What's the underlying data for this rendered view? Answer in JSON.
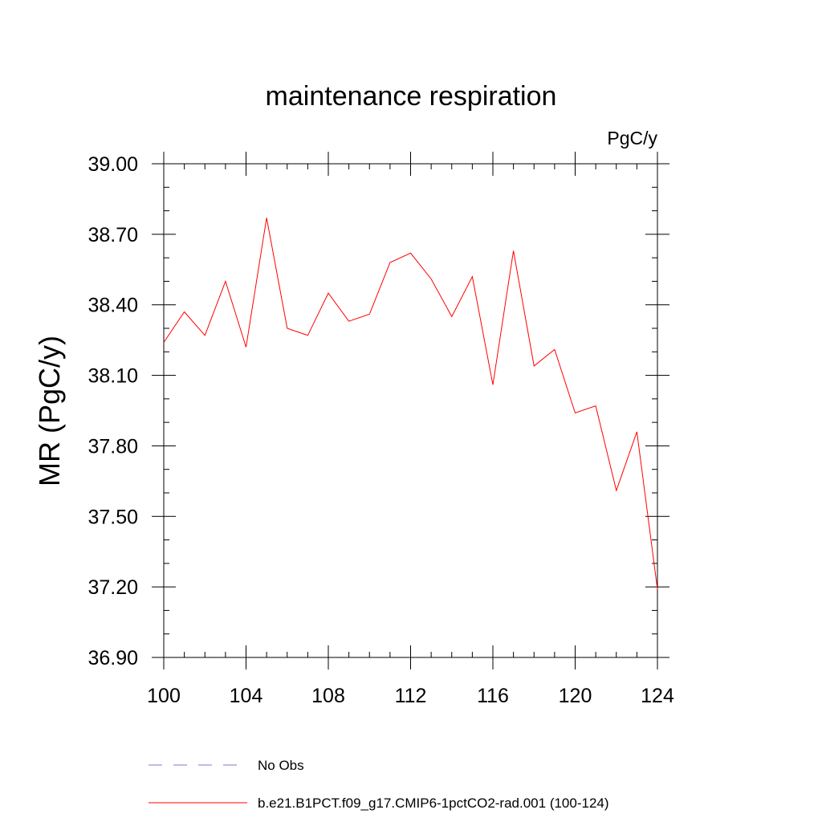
{
  "chart_data": {
    "type": "line",
    "title": "maintenance respiration",
    "units_label": "PgC/y",
    "xlabel": "",
    "ylabel": "MR  (PgC/y)",
    "xlim": [
      100,
      124
    ],
    "ylim": [
      36.9,
      39.0
    ],
    "x_ticks": [
      "100",
      "104",
      "108",
      "112",
      "116",
      "120",
      "124"
    ],
    "y_ticks": [
      "39.00",
      "38.70",
      "38.40",
      "38.10",
      "37.80",
      "37.50",
      "37.20",
      "36.90"
    ],
    "grid": false,
    "legend_position": "bottom",
    "legend": [
      {
        "label": "No Obs",
        "color": "#7b7bd6",
        "style": "dashed"
      },
      {
        "label": "b.e21.B1PCT.f09_g17.CMIP6-1pctCO2-rad.001 (100-124)",
        "color": "#ff0000",
        "style": "solid"
      }
    ],
    "series": [
      {
        "name": "b.e21.B1PCT.f09_g17.CMIP6-1pctCO2-rad.001 (100-124)",
        "color": "#ff0000",
        "x": [
          100,
          101,
          102,
          103,
          104,
          105,
          106,
          107,
          108,
          109,
          110,
          111,
          112,
          113,
          114,
          115,
          116,
          117,
          118,
          119,
          120,
          121,
          122,
          123,
          124
        ],
        "values": [
          38.24,
          38.37,
          38.27,
          38.5,
          38.22,
          38.77,
          38.3,
          38.27,
          38.45,
          38.33,
          38.36,
          38.58,
          38.62,
          38.51,
          38.35,
          38.52,
          38.06,
          38.63,
          38.14,
          38.21,
          37.94,
          37.97,
          37.61,
          37.86,
          37.19
        ]
      }
    ]
  }
}
